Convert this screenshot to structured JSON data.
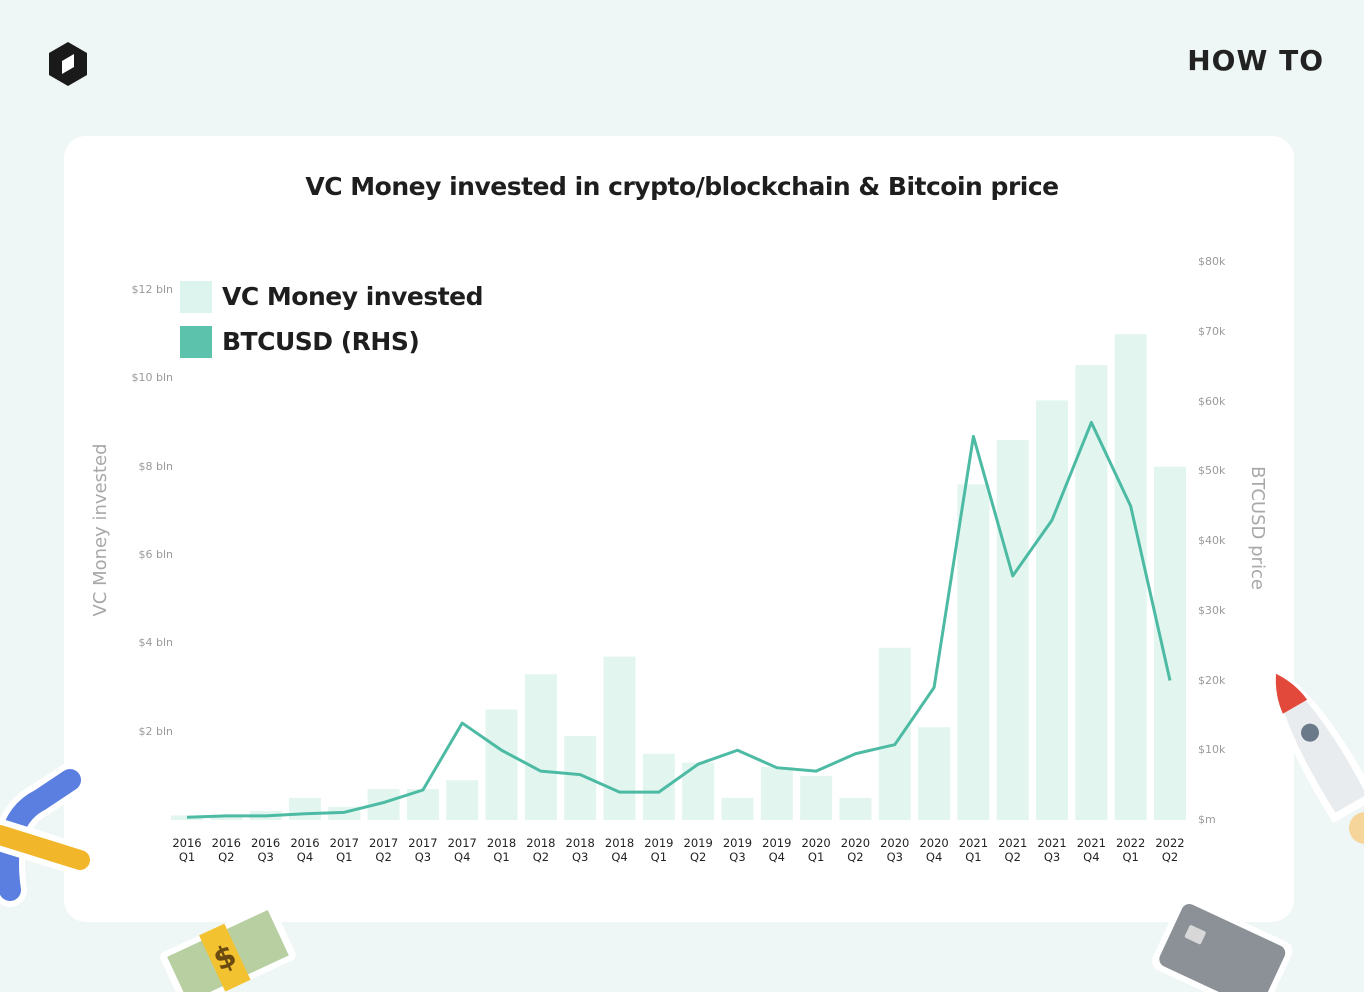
{
  "header": {
    "brand": "HOW TO"
  },
  "chart_data": {
    "type": "bar",
    "title": "VC Money invested in crypto/blockchain & Bitcoin price",
    "y_label": "VC Money invested",
    "y2_label": "BTCUSD price",
    "categories": [
      "2016 Q1",
      "2016 Q2",
      "2016 Q3",
      "2016 Q4",
      "2017 Q1",
      "2017 Q2",
      "2017 Q3",
      "2017 Q4",
      "2018 Q1",
      "2018 Q2",
      "2018 Q3",
      "2018 Q4",
      "2019 Q1",
      "2019 Q2",
      "2019 Q3",
      "2019 Q4",
      "2020 Q1",
      "2020 Q2",
      "2020 Q3",
      "2020 Q4",
      "2021 Q1",
      "2021 Q2",
      "2021 Q3",
      "2021 Q4",
      "2022 Q1",
      "2022 Q2"
    ],
    "series": [
      {
        "name": "VC Money invested",
        "type": "bar",
        "color": "#e2f5ef",
        "values": [
          0.1,
          0.1,
          0.2,
          0.5,
          0.3,
          0.7,
          0.7,
          0.9,
          2.5,
          3.3,
          1.9,
          3.7,
          1.5,
          1.3,
          0.5,
          1.2,
          1.0,
          0.5,
          3.9,
          2.1,
          7.6,
          8.6,
          9.5,
          10.3,
          11.0,
          8.0
        ]
      },
      {
        "name": "BTCUSD (RHS)",
        "type": "line",
        "axis": "y2",
        "color": "#4dbba3",
        "values": [
          0.4,
          0.6,
          0.6,
          0.9,
          1.1,
          2.5,
          4.3,
          13.9,
          10,
          7,
          6.5,
          4,
          4,
          8,
          10,
          7.5,
          7,
          9.5,
          10.8,
          19,
          55,
          35,
          43,
          57,
          45,
          20
        ]
      }
    ],
    "ylim": [
      0,
      12
    ],
    "yticks": [
      {
        "value": 2,
        "label": "$2 bln"
      },
      {
        "value": 4,
        "label": "$4 bln"
      },
      {
        "value": 6,
        "label": "$6 bln"
      },
      {
        "value": 8,
        "label": "$8 bln"
      },
      {
        "value": 10,
        "label": "$10 bln"
      },
      {
        "value": 12,
        "label": "$12 bln"
      }
    ],
    "y2lim": [
      0,
      80
    ],
    "y2ticks": [
      {
        "value": 0,
        "label": "$m"
      },
      {
        "value": 10,
        "label": "$10k"
      },
      {
        "value": 20,
        "label": "$20k"
      },
      {
        "value": 30,
        "label": "$30k"
      },
      {
        "value": 40,
        "label": "$40k"
      },
      {
        "value": 50,
        "label": "$50k"
      },
      {
        "value": 60,
        "label": "$60k"
      },
      {
        "value": 70,
        "label": "$70k"
      },
      {
        "value": 80,
        "label": "$80k"
      }
    ],
    "grid": false
  }
}
